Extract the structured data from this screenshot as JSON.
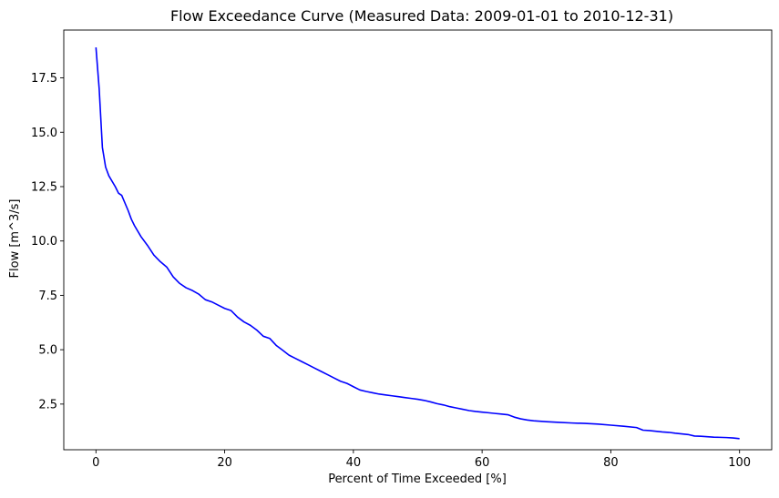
{
  "chart_data": {
    "type": "line",
    "title": "Flow Exceedance Curve (Measured Data: 2009-01-01 to 2010-12-31)",
    "xlabel": "Percent of Time Exceeded [%]",
    "ylabel": "Flow [m^3/s]",
    "xlim": [
      -5,
      105
    ],
    "ylim": [
      0.4,
      19.7
    ],
    "xticks": [
      0,
      20,
      40,
      60,
      80,
      100
    ],
    "xtick_labels": [
      "0",
      "20",
      "40",
      "60",
      "80",
      "100"
    ],
    "yticks": [
      2.5,
      5.0,
      7.5,
      10.0,
      12.5,
      15.0,
      17.5
    ],
    "ytick_labels": [
      "2.5",
      "5.0",
      "7.5",
      "10.0",
      "12.5",
      "15.0",
      "17.5"
    ],
    "grid": false,
    "series": [
      {
        "color": "#0000ff",
        "x": [
          0,
          0.5,
          1,
          1.5,
          2,
          3,
          3.5,
          4,
          5,
          5.5,
          6,
          7,
          8,
          9,
          10,
          11,
          12,
          13,
          14,
          15,
          16,
          17,
          18,
          19,
          20,
          21,
          22,
          23,
          24,
          25,
          26,
          27,
          28,
          29,
          30,
          31,
          32,
          33,
          34,
          35,
          36,
          37,
          38,
          39,
          40,
          41,
          42,
          43,
          44,
          45,
          46,
          47,
          48,
          49,
          50,
          51,
          52,
          53,
          54,
          55,
          56,
          57,
          58,
          59,
          60,
          61,
          62,
          63,
          64,
          65,
          66,
          67,
          68,
          69,
          70,
          72,
          74,
          76,
          78,
          80,
          82,
          84,
          85,
          86,
          87,
          88,
          89,
          90,
          91,
          92,
          93,
          94,
          95,
          96,
          97,
          98,
          99,
          100
        ],
        "y": [
          18.9,
          17.0,
          14.3,
          13.4,
          13.0,
          12.5,
          12.2,
          12.1,
          11.4,
          11.0,
          10.7,
          10.2,
          9.8,
          9.35,
          9.05,
          8.8,
          8.35,
          8.05,
          7.85,
          7.72,
          7.55,
          7.3,
          7.2,
          7.05,
          6.9,
          6.8,
          6.5,
          6.28,
          6.12,
          5.9,
          5.62,
          5.52,
          5.2,
          4.98,
          4.75,
          4.6,
          4.45,
          4.3,
          4.15,
          4.0,
          3.85,
          3.7,
          3.55,
          3.45,
          3.3,
          3.15,
          3.08,
          3.02,
          2.96,
          2.92,
          2.88,
          2.84,
          2.8,
          2.76,
          2.72,
          2.67,
          2.6,
          2.52,
          2.46,
          2.38,
          2.32,
          2.26,
          2.2,
          2.16,
          2.13,
          2.1,
          2.07,
          2.04,
          2.01,
          1.9,
          1.82,
          1.77,
          1.73,
          1.71,
          1.69,
          1.66,
          1.63,
          1.61,
          1.58,
          1.53,
          1.48,
          1.42,
          1.3,
          1.28,
          1.25,
          1.22,
          1.2,
          1.16,
          1.13,
          1.1,
          1.03,
          1.02,
          1.0,
          0.98,
          0.97,
          0.96,
          0.94,
          0.91
        ]
      }
    ]
  }
}
